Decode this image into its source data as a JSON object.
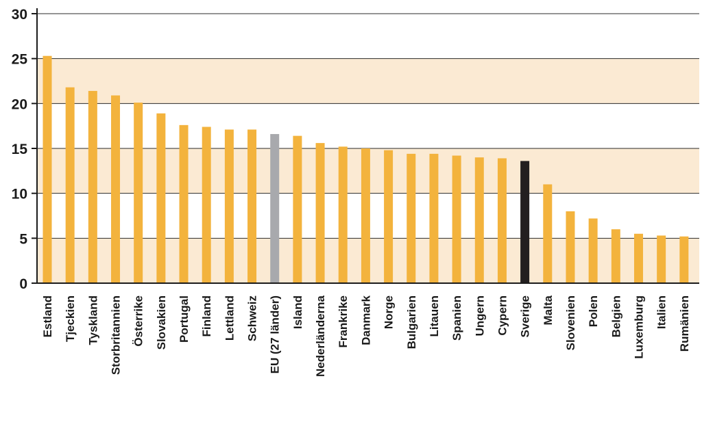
{
  "chart_data": {
    "type": "bar",
    "title": "",
    "xlabel": "",
    "ylabel": "",
    "ylim": [
      0,
      30
    ],
    "yticks": [
      0,
      5,
      10,
      15,
      20,
      25,
      30
    ],
    "grid": true,
    "legend": "none",
    "categories": [
      "Estland",
      "Tjeckien",
      "Tyskland",
      "Storbritannien",
      "Österrike",
      "Slovakien",
      "Portugal",
      "Finland",
      "Lettland",
      "Schweiz",
      "EU (27 länder)",
      "Island",
      "Nederländerna",
      "Frankrike",
      "Danmark",
      "Norge",
      "Bulgarien",
      "Litauen",
      "Spanien",
      "Ungern",
      "Cypern",
      "Sverige",
      "Malta",
      "Slovenien",
      "Polen",
      "Belgien",
      "Luxemburg",
      "Italien",
      "Rumänien"
    ],
    "values": [
      25.3,
      21.8,
      21.4,
      20.9,
      20.1,
      18.9,
      17.6,
      17.4,
      17.1,
      17.1,
      16.6,
      16.4,
      15.6,
      15.2,
      15.0,
      14.8,
      14.4,
      14.4,
      14.2,
      14.0,
      13.9,
      13.6,
      11.0,
      8.0,
      7.2,
      6.0,
      5.5,
      5.3,
      5.2
    ],
    "highlight": {
      "EU (27 länder)": "#a8a9ad",
      "Sverige": "#231f20"
    },
    "colors": {
      "bar": "#f3b33d",
      "band": "#fbead3",
      "grid": "#2a2a2a",
      "axis": "#1a1a1a"
    }
  }
}
